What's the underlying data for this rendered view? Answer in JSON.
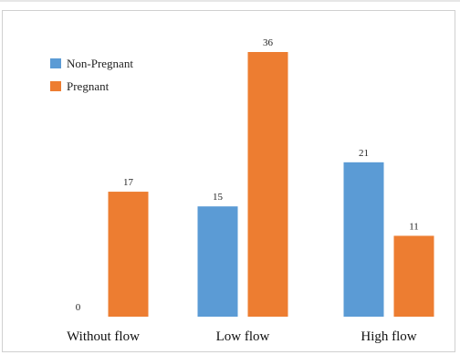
{
  "chart_data": {
    "type": "bar",
    "categories": [
      "Without flow",
      "Low flow",
      "High flow"
    ],
    "series": [
      {
        "name": "Non-Pregnant",
        "values": [
          0,
          15,
          21
        ],
        "color": "#5b9bd5"
      },
      {
        "name": "Pregnant",
        "values": [
          17,
          36,
          11
        ],
        "color": "#ed7d31"
      }
    ],
    "ylim": [
      0,
      36
    ],
    "grid": false,
    "legend_position": "top-left",
    "title": "",
    "xlabel": "",
    "ylabel": ""
  }
}
